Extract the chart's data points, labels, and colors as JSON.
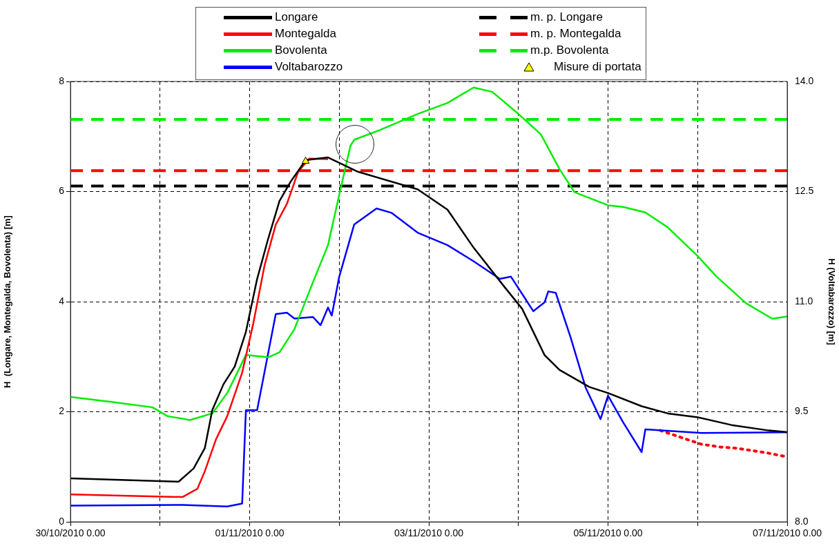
{
  "chart_data": {
    "type": "line",
    "xlabel": null,
    "ylabel": "H  (Longare, Montegalda, Bovolenta) [m]",
    "y2label": "H (Voltabarozzo) [m]",
    "xlim": [
      "2010-10-30T00:00",
      "2010-11-07T00:00"
    ],
    "xticks": [
      {
        "value": "2010-10-30T00:00",
        "label": "30/10/2010 0.00"
      },
      {
        "value": "2010-10-31T00:00",
        "label": null
      },
      {
        "value": "2010-11-01T00:00",
        "label": "01/11/2010 0.00"
      },
      {
        "value": "2010-11-02T00:00",
        "label": null
      },
      {
        "value": "2010-11-03T00:00",
        "label": "03/11/2010 0.00"
      },
      {
        "value": "2010-11-04T00:00",
        "label": null
      },
      {
        "value": "2010-11-05T00:00",
        "label": "05/11/2010 0.00"
      },
      {
        "value": "2010-11-06T00:00",
        "label": null
      },
      {
        "value": "2010-11-07T00:00",
        "label": "07/11/2010 0.00"
      }
    ],
    "ylim": [
      0,
      8
    ],
    "yticks": [
      0,
      2,
      4,
      6,
      8
    ],
    "y2lim": [
      8,
      14
    ],
    "y2ticks": [
      {
        "value": 8,
        "label": "8.0"
      },
      {
        "value": 9.5,
        "label": "9.5"
      },
      {
        "value": 11,
        "label": "11.0"
      },
      {
        "value": 12.5,
        "label": "12.5"
      },
      {
        "value": 14,
        "label": "14.0"
      }
    ],
    "grid": true,
    "legend": "top",
    "marker": "none",
    "line_style": "solid",
    "series": [
      {
        "name": "Longare",
        "color": "#000000",
        "x": [
          "2010-10-30T00:00",
          "2010-10-31T05:00",
          "2010-10-31T09:00",
          "2010-10-31T12:00",
          "2010-10-31T14:00",
          "2010-10-31T17:00",
          "2010-10-31T20:00",
          "2010-10-31T23:00",
          "2010-11-01T02:00",
          "2010-11-01T05:00",
          "2010-11-01T08:00",
          "2010-11-01T11:00",
          "2010-11-01T15:00",
          "2010-11-01T21:00",
          "2010-11-02T05:00",
          "2010-11-02T21:00",
          "2010-11-03T05:00",
          "2010-11-03T12:00",
          "2010-11-03T20:00",
          "2010-11-04T01:00",
          "2010-11-04T04:00",
          "2010-11-04T07:00",
          "2010-11-04T11:00",
          "2010-11-04T19:00",
          "2010-11-05T00:00",
          "2010-11-05T09:00",
          "2010-11-05T16:00",
          "2010-11-06T00:00",
          "2010-11-06T09:00",
          "2010-11-06T19:00",
          "2010-11-07T00:00"
        ],
        "values": [
          0.79,
          0.73,
          0.97,
          1.34,
          2.03,
          2.5,
          2.82,
          3.45,
          4.41,
          5.15,
          5.83,
          6.18,
          6.57,
          6.62,
          6.36,
          6.04,
          5.67,
          4.98,
          4.29,
          3.87,
          3.45,
          3.03,
          2.76,
          2.45,
          2.34,
          2.1,
          1.97,
          1.9,
          1.76,
          1.66,
          1.63
        ]
      },
      {
        "name": "Montegalda",
        "color": "#ff0000",
        "x": [
          "2010-10-30T00:00",
          "2010-10-31T06:00",
          "2010-10-31T10:00",
          "2010-10-31T12:00",
          "2010-10-31T15:00",
          "2010-10-31T18:00",
          "2010-10-31T22:00",
          "2010-11-01T01:00",
          "2010-11-01T04:00",
          "2010-11-01T07:00",
          "2010-11-01T10:00",
          "2010-11-01T13:00",
          "2010-11-01T16:00",
          "2010-11-01T21:00"
        ],
        "values": [
          0.5,
          0.45,
          0.6,
          0.92,
          1.5,
          1.92,
          2.71,
          3.61,
          4.66,
          5.4,
          5.78,
          6.36,
          6.6,
          6.59
        ]
      },
      {
        "name": "Bovolenta",
        "color": "#00ee00",
        "x": [
          "2010-10-30T00:00",
          "2010-10-30T11:00",
          "2010-10-30T22:00",
          "2010-10-31T02:00",
          "2010-10-31T08:00",
          "2010-10-31T14:00",
          "2010-10-31T18:00",
          "2010-10-31T23:00",
          "2010-11-01T05:00",
          "2010-11-01T08:00",
          "2010-11-01T12:00",
          "2010-11-01T16:00",
          "2010-11-01T21:00",
          "2010-11-02T00:00",
          "2010-11-02T03:00",
          "2010-11-02T04:00",
          "2010-11-02T11:00",
          "2010-11-02T21:00",
          "2010-11-03T05:00",
          "2010-11-03T12:00",
          "2010-11-03T17:00",
          "2010-11-04T00:00",
          "2010-11-04T06:00",
          "2010-11-04T11:00",
          "2010-11-04T15:00",
          "2010-11-05T00:00",
          "2010-11-05T04:00",
          "2010-11-05T10:00",
          "2010-11-05T16:00",
          "2010-11-06T00:00",
          "2010-11-06T05:00",
          "2010-11-06T13:00",
          "2010-11-06T20:00",
          "2010-11-07T00:00"
        ],
        "values": [
          2.27,
          2.18,
          2.08,
          1.92,
          1.85,
          1.97,
          2.34,
          3.03,
          2.99,
          3.08,
          3.5,
          4.19,
          5.03,
          5.94,
          6.83,
          6.94,
          7.12,
          7.41,
          7.61,
          7.89,
          7.81,
          7.41,
          7.04,
          6.41,
          5.99,
          5.75,
          5.72,
          5.62,
          5.35,
          4.83,
          4.46,
          3.97,
          3.69,
          3.73
        ]
      },
      {
        "name": "Voltabarozzo",
        "color": "#0000ff",
        "axis": "y2",
        "x": [
          "2010-10-30T00:00",
          "2010-10-31T06:00",
          "2010-10-31T18:00",
          "2010-10-31T22:00",
          "2010-10-31T23:00",
          "2010-11-01T02:00",
          "2010-11-01T07:00",
          "2010-11-01T10:00",
          "2010-11-01T12:00",
          "2010-11-01T17:00",
          "2010-11-01T19:00",
          "2010-11-01T21:00",
          "2010-11-01T22:00",
          "2010-11-02T00:00",
          "2010-11-02T04:00",
          "2010-11-02T10:00",
          "2010-11-02T14:00",
          "2010-11-02T21:00",
          "2010-11-03T05:00",
          "2010-11-03T12:00",
          "2010-11-03T19:00",
          "2010-11-03T22:00",
          "2010-11-04T04:00",
          "2010-11-04T07:00",
          "2010-11-04T08:00",
          "2010-11-04T10:00",
          "2010-11-04T14:00",
          "2010-11-04T18:00",
          "2010-11-04T22:00",
          "2010-11-05T00:00",
          "2010-11-05T04:00",
          "2010-11-05T09:00",
          "2010-11-05T10:00",
          "2010-11-06T01:00",
          "2010-11-07T00:00"
        ],
        "values": [
          8.22,
          8.23,
          8.21,
          8.25,
          9.52,
          9.52,
          10.83,
          10.85,
          10.77,
          10.79,
          10.68,
          10.92,
          10.81,
          11.34,
          12.05,
          12.27,
          12.21,
          11.94,
          11.77,
          11.55,
          11.31,
          11.34,
          10.87,
          10.99,
          11.14,
          11.12,
          10.51,
          9.83,
          9.4,
          9.72,
          9.36,
          8.95,
          9.26,
          9.21,
          9.22
        ]
      },
      {
        "name": "m. p. Longare",
        "color": "#000000",
        "line_style": "dashed",
        "x": [
          "2010-10-30T00:00",
          "2010-11-07T00:00"
        ],
        "values": [
          6.1,
          6.1
        ]
      },
      {
        "name": "m. p. Montegalda",
        "color": "#ff0000",
        "line_style": "dashed",
        "x": [
          "2010-10-30T00:00",
          "2010-11-07T00:00"
        ],
        "values": [
          6.38,
          6.38
        ]
      },
      {
        "name": "m.p. Bovolenta",
        "color": "#00ee00",
        "line_style": "dashed",
        "x": [
          "2010-10-30T00:00",
          "2010-11-07T00:00"
        ],
        "values": [
          7.31,
          7.31
        ]
      },
      {
        "name": "Misure di portata",
        "color": "#ffff00",
        "type": "scatter",
        "marker": "triangle",
        "x": [
          "2010-11-01T15:00"
        ],
        "values": [
          6.55
        ]
      },
      {
        "color": "#ff0000",
        "line_style": "dotted",
        "x": [
          "2010-11-05T14:00",
          "2010-11-06T01:00",
          "2010-11-06T06:00",
          "2010-11-06T10:00",
          "2010-11-06T18:00",
          "2010-11-07T00:00"
        ],
        "values": [
          1.66,
          1.41,
          1.36,
          1.34,
          1.26,
          1.18
        ]
      }
    ]
  }
}
